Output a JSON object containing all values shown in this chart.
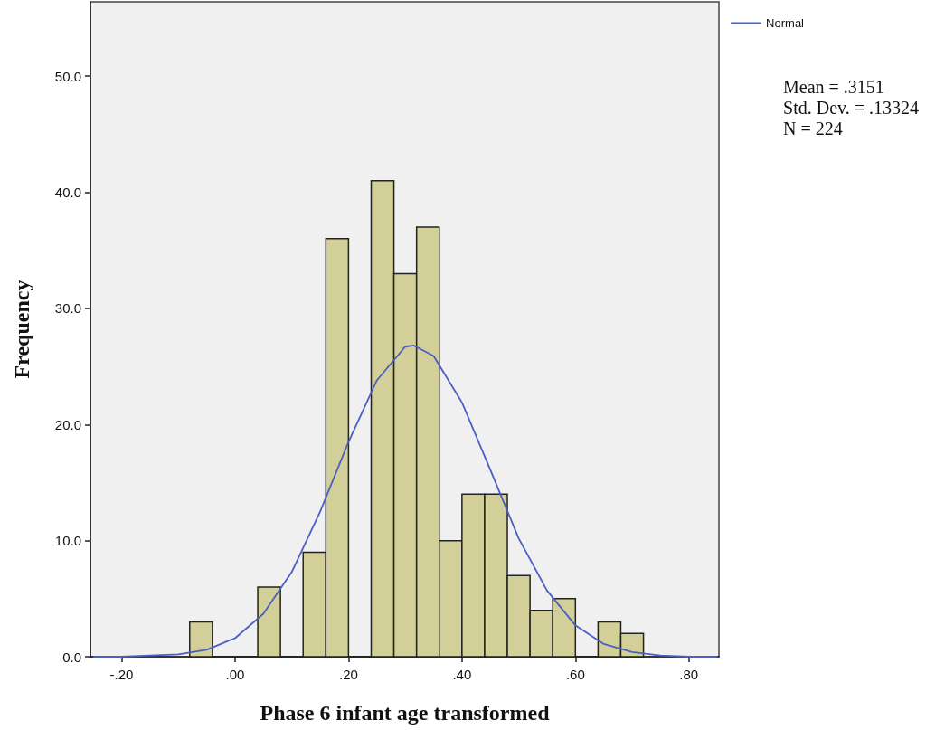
{
  "chart_data": {
    "type": "histogram",
    "xlabel": "Phase 6 infant age transformed",
    "ylabel": "Frequency",
    "bins": [
      -0.08,
      -0.04,
      0,
      0.04,
      0.08,
      0.12,
      0.16,
      0.2,
      0.24,
      0.28,
      0.32,
      0.36,
      0.4,
      0.44,
      0.48,
      0.52,
      0.56,
      0.6,
      0.64,
      0.68,
      0.72
    ],
    "values": [
      3,
      0,
      0,
      6,
      0,
      9,
      36,
      0,
      41,
      33,
      37,
      10,
      14,
      14,
      7,
      4,
      5,
      0,
      3,
      2
    ],
    "color": "#d3cf98",
    "series": [
      {
        "type": "line",
        "name": "Normal",
        "color": "#4a5fc1",
        "x": [
          -0.25,
          -0.2,
          -0.15,
          -0.1,
          -0.05,
          0,
          0.05,
          0.1,
          0.15,
          0.2,
          0.25,
          0.3,
          0.3151,
          0.35,
          0.4,
          0.45,
          0.5,
          0.55,
          0.6,
          0.65,
          0.7,
          0.75,
          0.8,
          0.85
        ],
        "values": [
          0.0,
          0.0,
          0.1,
          0.2,
          0.6,
          1.6,
          3.7,
          7.3,
          12.5,
          18.5,
          23.8,
          26.7,
          26.8,
          25.9,
          21.9,
          16.1,
          10.2,
          5.7,
          2.7,
          1.1,
          0.4,
          0.1,
          0.0,
          0.0
        ]
      }
    ],
    "xlim": [
      -0.255,
      0.853
    ],
    "xticks": [
      {
        "value": -0.2,
        "label": "-.20"
      },
      {
        "value": 0,
        "label": ".00"
      },
      {
        "value": 0.2,
        "label": ".20"
      },
      {
        "value": 0.4,
        "label": ".40"
      },
      {
        "value": 0.6,
        "label": ".60"
      },
      {
        "value": 0.8,
        "label": ".80"
      }
    ],
    "ylim": [
      0,
      56.4
    ],
    "yticks": [
      {
        "value": 0,
        "label": "0.0"
      },
      {
        "value": 10,
        "label": "10.0"
      },
      {
        "value": 20,
        "label": "20.0"
      },
      {
        "value": 30,
        "label": "30.0"
      },
      {
        "value": 40,
        "label": "40.0"
      },
      {
        "value": 50,
        "label": "50.0"
      }
    ],
    "legend": "top right",
    "grid": false,
    "marker": "none",
    "annotations": [
      "Mean = .3151\nStd. Dev. = .13324\nN = 224"
    ]
  }
}
